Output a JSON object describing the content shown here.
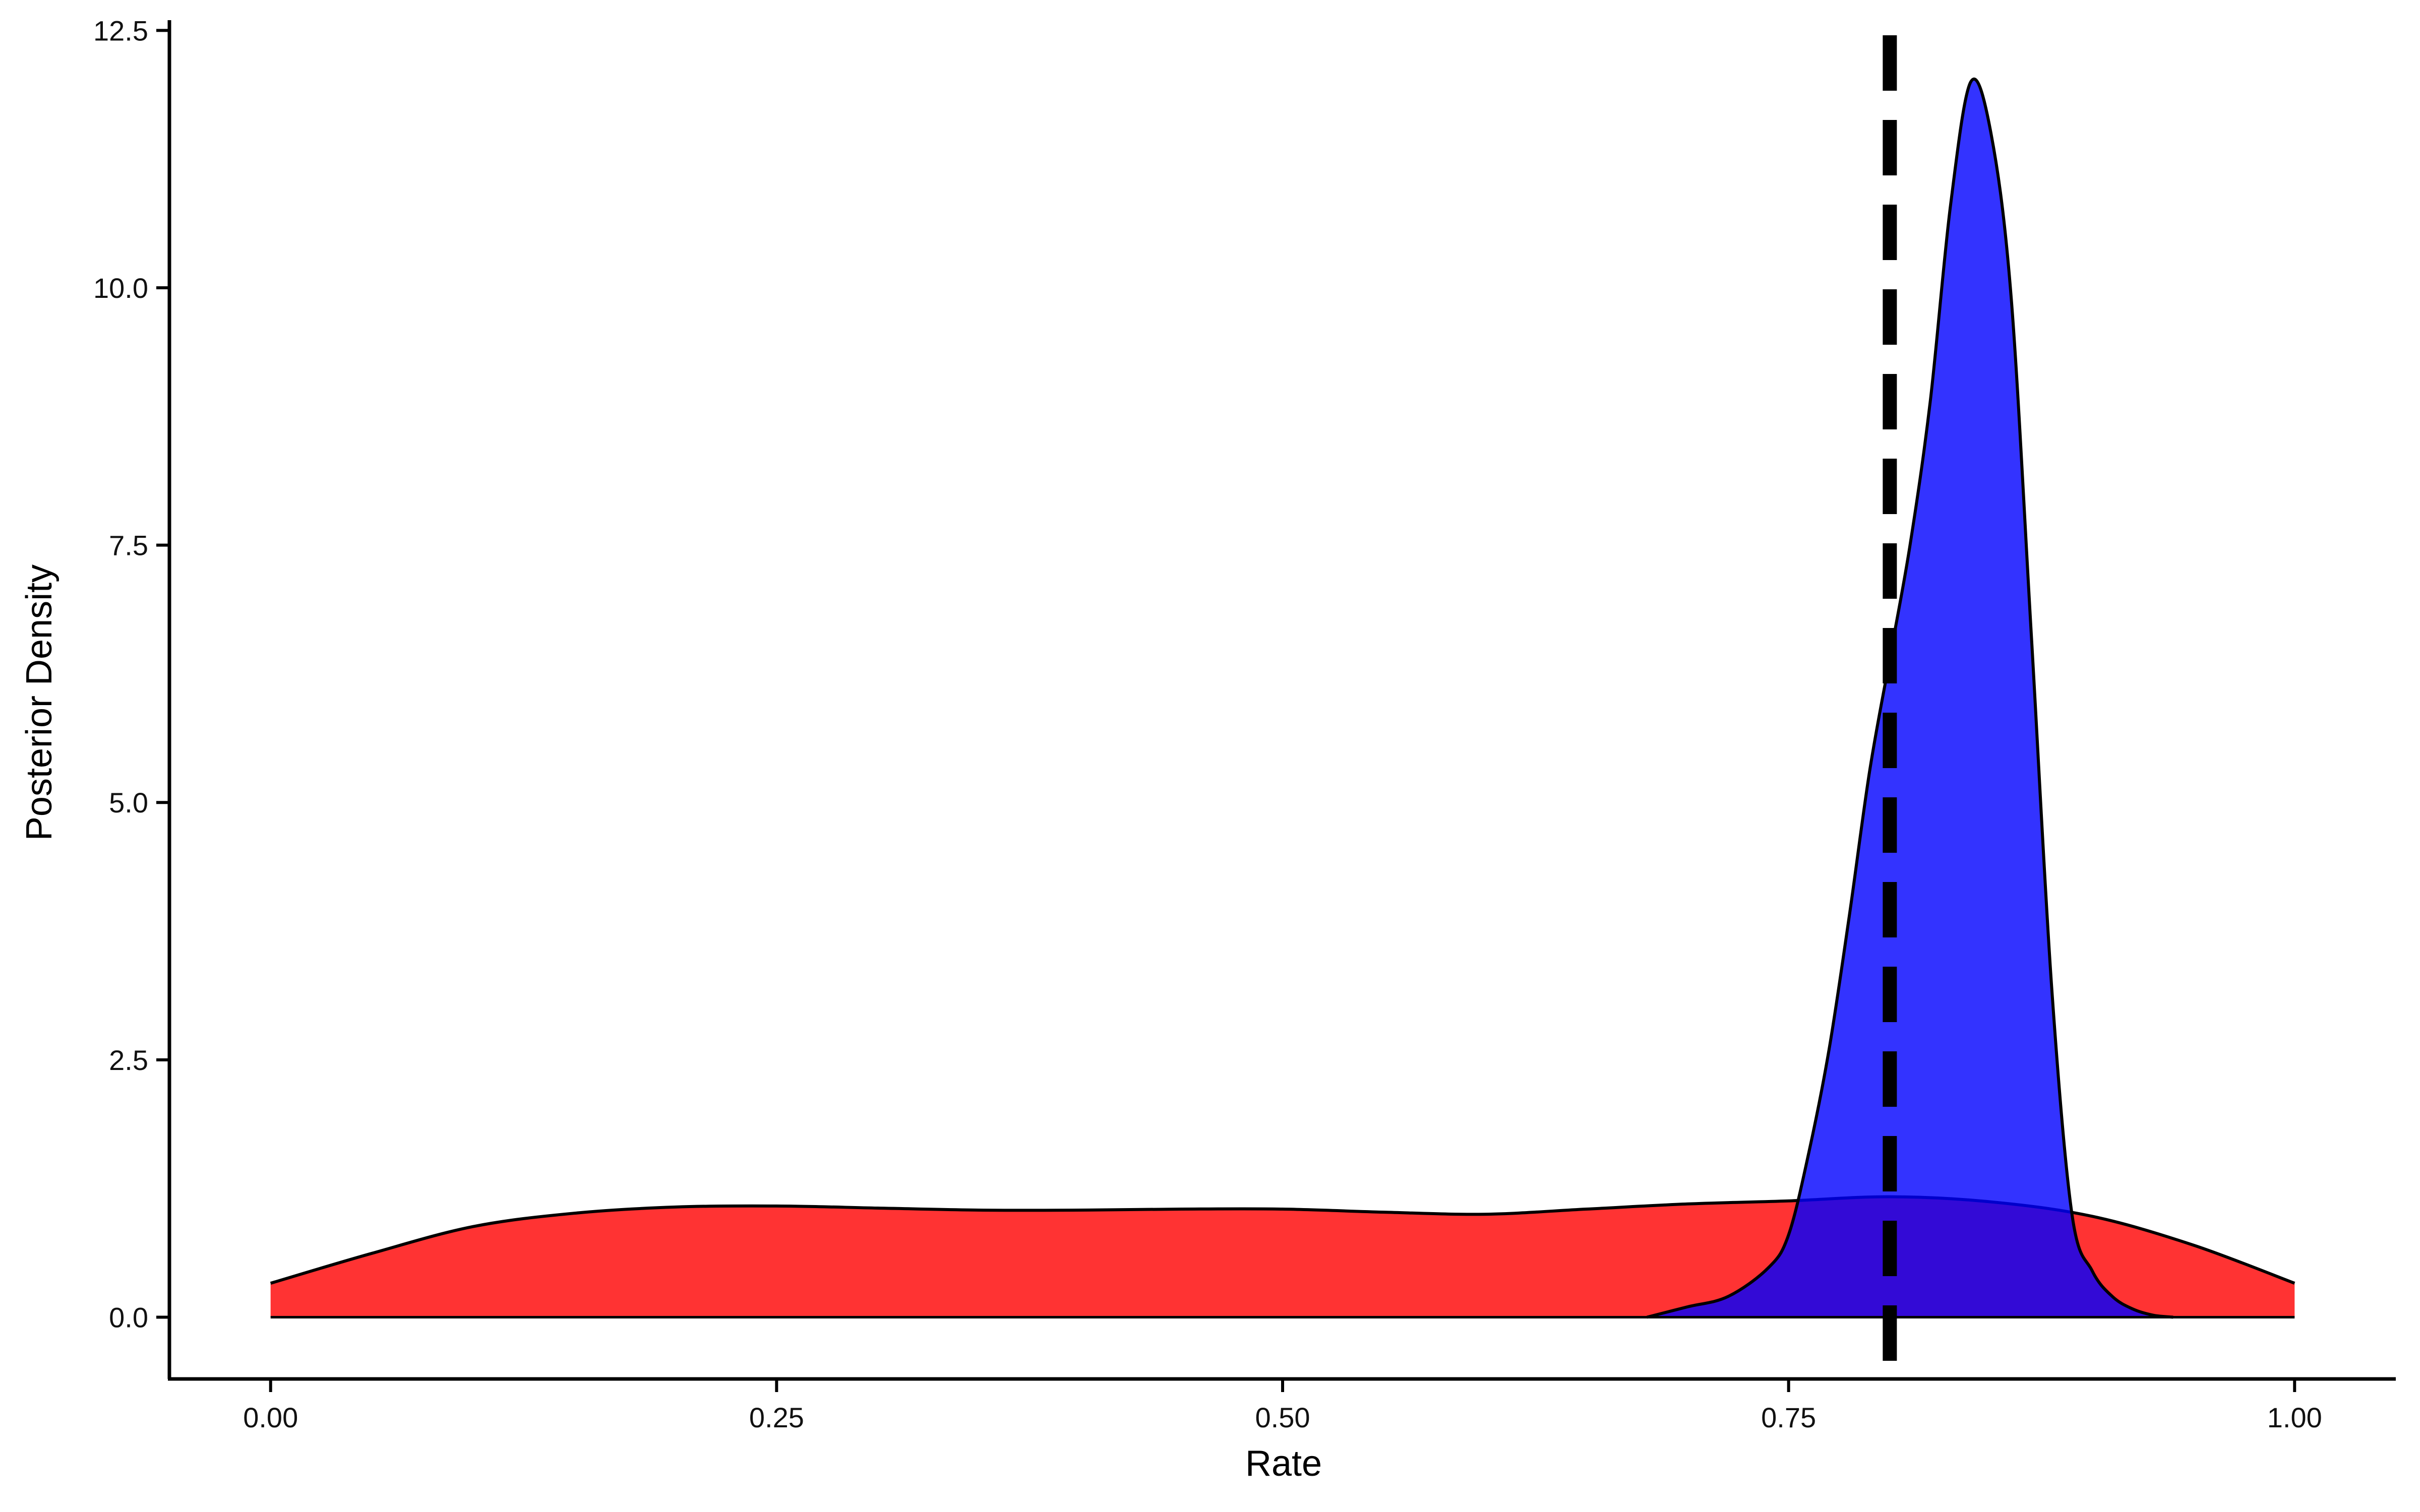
{
  "chart_data": {
    "type": "area",
    "title": "",
    "xlabel": "Rate",
    "ylabel": "Posterior Density",
    "xlim": [
      -0.05,
      1.05
    ],
    "ylim": [
      -0.6,
      12.6
    ],
    "xticks": [
      0.0,
      0.25,
      0.5,
      0.75,
      1.0
    ],
    "xtick_labels": [
      "0.00",
      "0.25",
      "0.50",
      "0.75",
      "1.00"
    ],
    "yticks": [
      0.0,
      2.5,
      5.0,
      7.5,
      10.0,
      12.5
    ],
    "ytick_labels": [
      "0.0",
      "2.5",
      "5.0",
      "7.5",
      "10.0",
      "12.5"
    ],
    "grid": false,
    "legend": "none",
    "reference_line": {
      "x": 0.8,
      "style": "dashed",
      "color": "#000000"
    },
    "series": [
      {
        "color": "#ff0000",
        "opacity": 0.8,
        "x": [
          0.0,
          0.05,
          0.1,
          0.15,
          0.2,
          0.25,
          0.3,
          0.35,
          0.4,
          0.45,
          0.5,
          0.55,
          0.6,
          0.65,
          0.7,
          0.75,
          0.8,
          0.85,
          0.9,
          0.95,
          1.0
        ],
        "y": [
          0.33,
          0.62,
          0.88,
          1.01,
          1.07,
          1.08,
          1.06,
          1.04,
          1.04,
          1.05,
          1.05,
          1.02,
          1.0,
          1.05,
          1.1,
          1.13,
          1.17,
          1.12,
          0.98,
          0.7,
          0.33
        ]
      },
      {
        "color": "#0000ff",
        "opacity": 0.8,
        "x": [
          0.68,
          0.7,
          0.72,
          0.74,
          0.75,
          0.76,
          0.77,
          0.78,
          0.79,
          0.8,
          0.81,
          0.82,
          0.83,
          0.84,
          0.85,
          0.86,
          0.87,
          0.88,
          0.89,
          0.9,
          0.91,
          0.92,
          0.93,
          0.94
        ],
        "y": [
          0.0,
          0.1,
          0.2,
          0.48,
          0.8,
          1.6,
          2.6,
          3.9,
          5.3,
          6.4,
          7.5,
          8.9,
          10.8,
          12.0,
          11.5,
          9.9,
          6.6,
          3.2,
          1.0,
          0.45,
          0.2,
          0.08,
          0.02,
          0.0
        ]
      }
    ]
  }
}
